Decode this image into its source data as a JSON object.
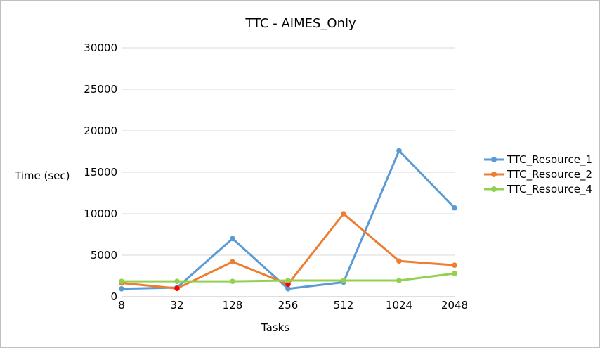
{
  "chart_data": {
    "type": "line",
    "title": "TTC - AIMES_Only",
    "xlabel": "Tasks",
    "ylabel": "Time (sec)",
    "categories": [
      "8",
      "32",
      "128",
      "256",
      "512",
      "1024",
      "2048"
    ],
    "ylim": [
      0,
      30000
    ],
    "yticks": [
      0,
      5000,
      10000,
      15000,
      20000,
      25000,
      30000
    ],
    "grid": true,
    "legend_position": "right",
    "series": [
      {
        "name": "TTC_Resource_1",
        "color": "#5b9bd5",
        "values": [
          950,
          1100,
          7000,
          950,
          1750,
          17600,
          10700
        ]
      },
      {
        "name": "TTC_Resource_2",
        "color": "#ed7d31",
        "values": [
          1650,
          1000,
          4200,
          1500,
          10000,
          4300,
          3800
        ]
      },
      {
        "name": "TTC_Resource_4",
        "color": "#92d050",
        "values": [
          1850,
          1850,
          1850,
          1950,
          1950,
          1950,
          2800
        ]
      }
    ],
    "highlighted_points": [
      {
        "series": "TTC_Resource_2",
        "category": "32",
        "color": "#ff0000"
      },
      {
        "series": "TTC_Resource_2",
        "category": "256",
        "color": "#ff0000"
      }
    ]
  }
}
